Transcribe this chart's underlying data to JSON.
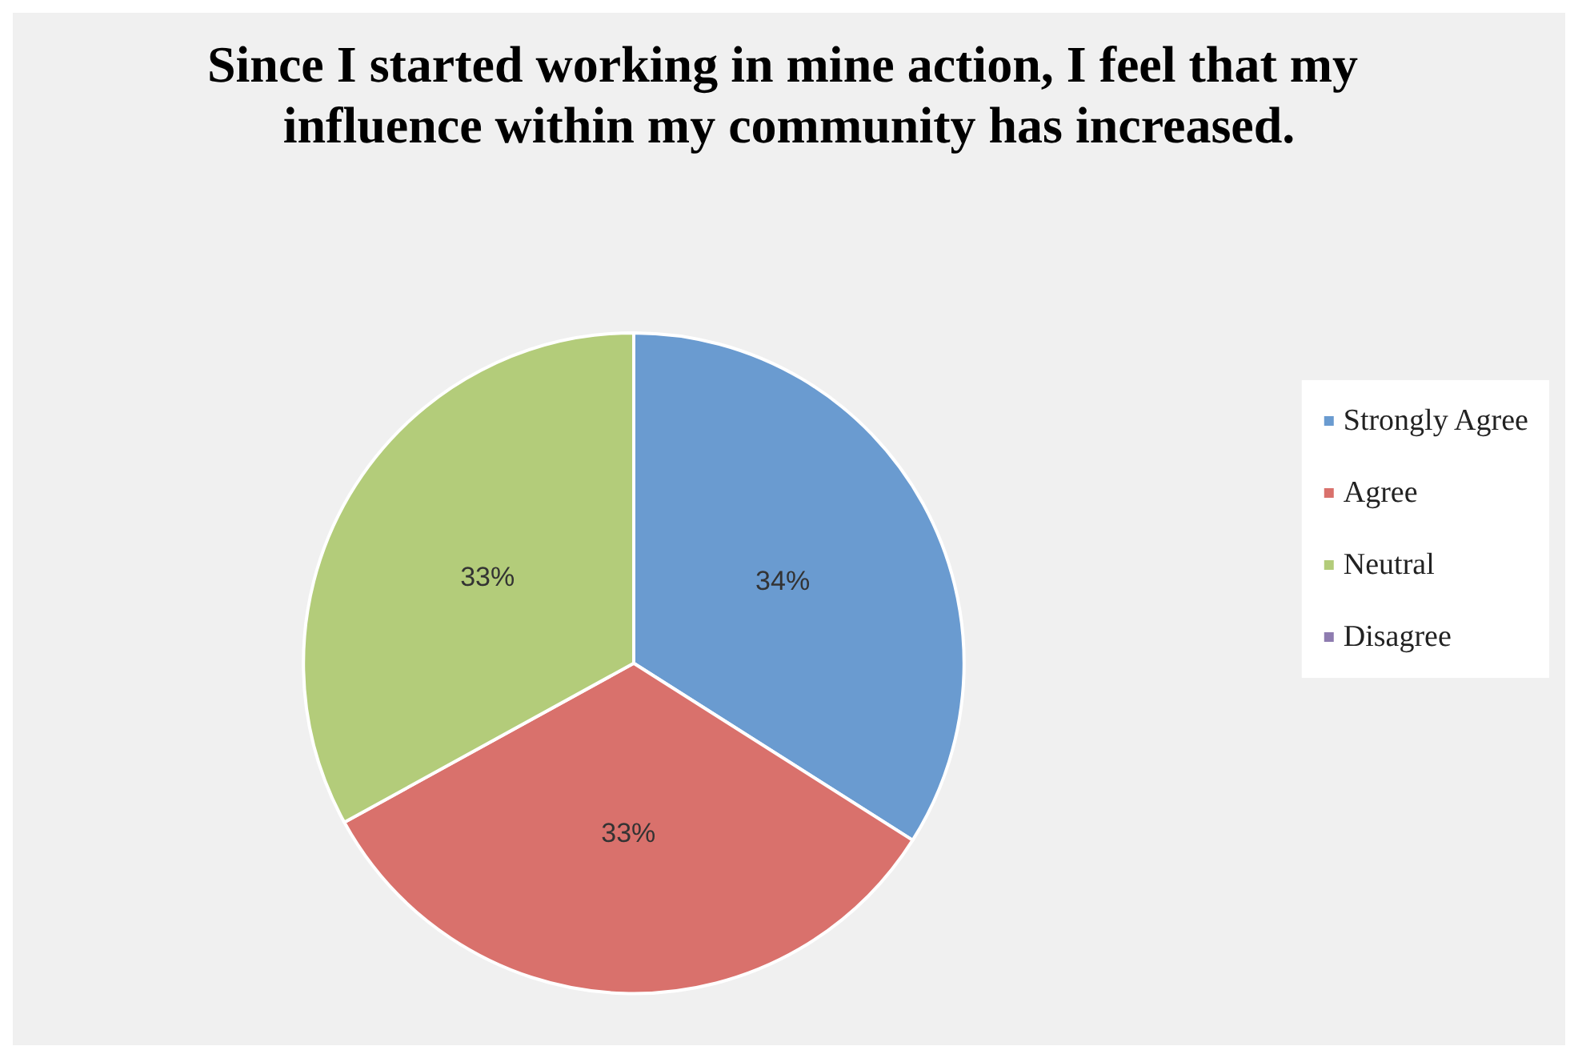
{
  "chart_data": {
    "type": "pie",
    "title": "Since I started working in mine action, I feel that my influence within my community has increased.",
    "categories": [
      "Strongly Agree",
      "Agree",
      "Neutral",
      "Disagree"
    ],
    "values": [
      34,
      33,
      33,
      0
    ],
    "colors": [
      "#6a9bd0",
      "#d9716c",
      "#b3cc7a",
      "#8e7cb0"
    ],
    "value_labels": [
      "34%",
      "33%",
      "33%",
      null
    ],
    "legend": "right"
  }
}
